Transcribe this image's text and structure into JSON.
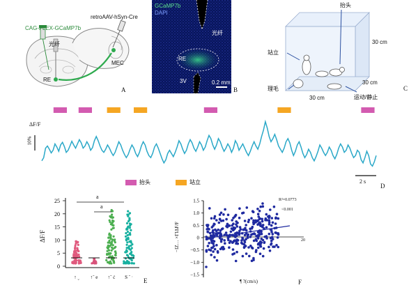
{
  "panelA": {
    "label": "A",
    "vector_left": "CAG-FLEX-GCaMP7b",
    "vector_right": "retroAAV-hSyn-Cre",
    "fiber": "光纤",
    "region_re": "RE",
    "region_mec": "MEC"
  },
  "panelB": {
    "label": "B",
    "legend_green": "GCaMP7b",
    "legend_blue": "DAPI",
    "fiber": "光纤",
    "region_re": "RE",
    "region_3v": "3V",
    "scale": "0.2 mm"
  },
  "panelC": {
    "label": "C",
    "rear": "抬头",
    "stand": "站立",
    "groom": "理毛",
    "move": "运动/静止",
    "dim_height": "30 cm",
    "dim_depth": "30 cm",
    "dim_width": "30 cm"
  },
  "panelD": {
    "label": "D",
    "ylabel": "ΔF/F",
    "scale_y": "10%",
    "scale_x": "2 s",
    "legend_rear": "抬头",
    "legend_stand": "站立",
    "colors": {
      "rear": "#d35bb0",
      "stand": "#f5a623",
      "trace": "#2aa8c8"
    },
    "events": [
      {
        "type": "rear",
        "start": 0.035,
        "end": 0.075
      },
      {
        "type": "rear",
        "start": 0.11,
        "end": 0.15
      },
      {
        "type": "stand",
        "start": 0.195,
        "end": 0.235
      },
      {
        "type": "stand",
        "start": 0.275,
        "end": 0.315
      },
      {
        "type": "rear",
        "start": 0.485,
        "end": 0.525
      },
      {
        "type": "stand",
        "start": 0.705,
        "end": 0.745
      },
      {
        "type": "rear",
        "start": 0.955,
        "end": 0.995
      }
    ],
    "trace": [
      0.2,
      0.26,
      0.44,
      0.48,
      0.42,
      0.35,
      0.4,
      0.52,
      0.46,
      0.38,
      0.5,
      0.55,
      0.47,
      0.36,
      0.4,
      0.48,
      0.57,
      0.5,
      0.44,
      0.52,
      0.6,
      0.54,
      0.44,
      0.48,
      0.56,
      0.5,
      0.4,
      0.45,
      0.58,
      0.66,
      0.58,
      0.48,
      0.4,
      0.36,
      0.42,
      0.5,
      0.44,
      0.36,
      0.3,
      0.36,
      0.46,
      0.56,
      0.5,
      0.4,
      0.32,
      0.26,
      0.32,
      0.42,
      0.5,
      0.44,
      0.34,
      0.28,
      0.36,
      0.48,
      0.56,
      0.5,
      0.38,
      0.3,
      0.26,
      0.34,
      0.46,
      0.52,
      0.44,
      0.34,
      0.24,
      0.16,
      0.22,
      0.34,
      0.4,
      0.34,
      0.28,
      0.36,
      0.46,
      0.58,
      0.52,
      0.42,
      0.34,
      0.4,
      0.52,
      0.6,
      0.54,
      0.44,
      0.38,
      0.46,
      0.56,
      0.5,
      0.4,
      0.46,
      0.58,
      0.68,
      0.62,
      0.5,
      0.42,
      0.5,
      0.62,
      0.56,
      0.46,
      0.38,
      0.44,
      0.52,
      0.46,
      0.36,
      0.44,
      0.58,
      0.52,
      0.4,
      0.46,
      0.52,
      0.44,
      0.36,
      0.3,
      0.38,
      0.48,
      0.56,
      0.48,
      0.42,
      0.52,
      0.66,
      0.78,
      0.94,
      0.82,
      0.66,
      0.56,
      0.62,
      0.7,
      0.6,
      0.48,
      0.42,
      0.36,
      0.44,
      0.56,
      0.62,
      0.54,
      0.4,
      0.3,
      0.38,
      0.5,
      0.56,
      0.46,
      0.34,
      0.26,
      0.32,
      0.42,
      0.36,
      0.26,
      0.2,
      0.28,
      0.38,
      0.5,
      0.44,
      0.36,
      0.3,
      0.36,
      0.46,
      0.4,
      0.3,
      0.24,
      0.32,
      0.44,
      0.52,
      0.46,
      0.36,
      0.4,
      0.5,
      0.44,
      0.34,
      0.26,
      0.3,
      0.4,
      0.36,
      0.22,
      0.16,
      0.26,
      0.38,
      0.3,
      0.14,
      0.1,
      0.18,
      0.3
    ]
  },
  "panelE": {
    "label": "E",
    "ylabel": "ΔF/F",
    "yticks": [
      "25",
      "20",
      "15",
      "10",
      "5",
      "0"
    ],
    "sig1": "a",
    "sig2": "a",
    "xticklabels": [
      "↑ ˬ",
      "↑ˉ e",
      "↑ˉ ċ",
      "S ˉ ˑ"
    ],
    "colors": [
      "#e05a7e",
      "#d8527a",
      "#4caf50",
      "#18b0a0"
    ]
  },
  "panelF": {
    "label": "F",
    "ylabel": "−ΙΖ… ×ΓΙΔF/F",
    "xlabel": "¶ ?(cm/s)",
    "xtick_right": "20",
    "yticks": [
      "1.5",
      "1.0",
      "0.5",
      "0",
      "−0.5",
      "−1.0",
      "−1.5"
    ],
    "r2": "R²=0.0773",
    "p": "<0.001",
    "dot_color": "#1f2aa0"
  }
}
